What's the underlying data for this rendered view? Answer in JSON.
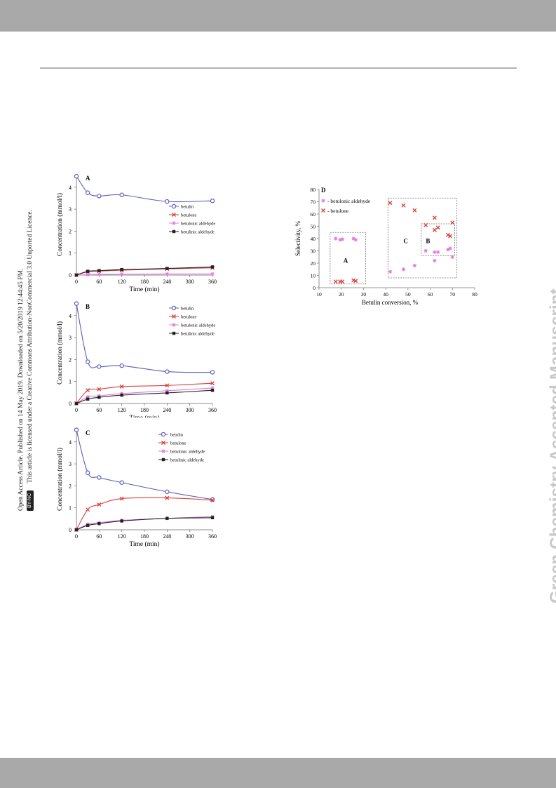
{
  "page": {
    "sidebar_line1": "Open Access Article. Published on 14 May 2019. Downloaded on 5/20/2019 12:44:45 PM.",
    "sidebar_badge": "BY-NC",
    "sidebar_line2": "This article is licensed under a Creative Commons Attribution-NonCommercial 3.0 Unported Licence.",
    "watermark": "Green Chemistry Accepted Manuscript"
  },
  "colors": {
    "betulin": "#5b5bbf",
    "betulone": "#d9423b",
    "betulonic_aldehyde": "#e07ae0",
    "betulinic_aldehyde": "#222222"
  },
  "chart_data": [
    {
      "type": "line",
      "panel_label": "A",
      "xlabel": "Time (min)",
      "ylabel": "Concentration (mmol/l)",
      "xticks": [
        0,
        60,
        120,
        180,
        240,
        300,
        360
      ],
      "yticks": [
        0,
        1,
        2,
        3,
        4
      ],
      "xlim": [
        0,
        360
      ],
      "ylim": [
        0,
        4.6
      ],
      "x": [
        0,
        30,
        60,
        120,
        240,
        360
      ],
      "series": [
        {
          "name": "betulin",
          "values": [
            4.5,
            3.75,
            3.6,
            3.65,
            3.35,
            3.38
          ]
        },
        {
          "name": "betulone",
          "values": [
            0,
            0.15,
            0.18,
            0.22,
            0.28,
            0.33
          ]
        },
        {
          "name": "betulonic aldehyde",
          "values": [
            0,
            0.02,
            0.03,
            0.04,
            0.05,
            0.05
          ]
        },
        {
          "name": "betulinic aldehyde",
          "values": [
            0,
            0.17,
            0.2,
            0.25,
            0.3,
            0.37
          ]
        }
      ],
      "legend_position": "right"
    },
    {
      "type": "line",
      "panel_label": "B",
      "xlabel": "Time (min)",
      "ylabel": "Concentration (mmol/l)",
      "xticks": [
        0,
        60,
        120,
        180,
        240,
        300,
        360
      ],
      "yticks": [
        0,
        1,
        2,
        3,
        4
      ],
      "xlim": [
        0,
        360
      ],
      "ylim": [
        0,
        4.6
      ],
      "x": [
        0,
        30,
        60,
        120,
        240,
        360
      ],
      "series": [
        {
          "name": "betulin",
          "values": [
            4.55,
            1.9,
            1.68,
            1.72,
            1.45,
            1.42
          ]
        },
        {
          "name": "betulone",
          "values": [
            0,
            0.6,
            0.65,
            0.77,
            0.82,
            0.92
          ]
        },
        {
          "name": "betulonic aldehyde",
          "values": [
            0,
            0.3,
            0.35,
            0.45,
            0.58,
            0.7
          ]
        },
        {
          "name": "betulinic aldehyde",
          "values": [
            0,
            0.2,
            0.28,
            0.38,
            0.48,
            0.6
          ]
        }
      ],
      "legend_position": "top-right"
    },
    {
      "type": "line",
      "panel_label": "C",
      "xlabel": "Time (min)",
      "ylabel": "Concentration (mmol/l)",
      "xticks": [
        0,
        60,
        120,
        180,
        240,
        300,
        360
      ],
      "yticks": [
        0,
        1,
        2,
        3,
        4
      ],
      "xlim": [
        0,
        360
      ],
      "ylim": [
        0,
        4.6
      ],
      "x": [
        0,
        30,
        60,
        120,
        240,
        360
      ],
      "series": [
        {
          "name": "betulin",
          "values": [
            4.55,
            2.6,
            2.38,
            2.15,
            1.73,
            1.38
          ]
        },
        {
          "name": "betulone",
          "values": [
            0,
            0.92,
            1.15,
            1.42,
            1.45,
            1.35
          ]
        },
        {
          "name": "betulonic aldehyde",
          "values": [
            0,
            0.25,
            0.32,
            0.43,
            0.52,
            0.6
          ]
        },
        {
          "name": "betulinic aldehyde",
          "values": [
            0,
            0.2,
            0.28,
            0.4,
            0.52,
            0.55
          ]
        }
      ],
      "legend_position": "top-right"
    },
    {
      "type": "scatter",
      "panel_label": "D",
      "xlabel": "Betulin conversion, %",
      "ylabel": "Selectivity, %",
      "xticks": [
        10,
        20,
        30,
        40,
        50,
        60,
        70,
        80
      ],
      "yticks": [
        0,
        10,
        20,
        30,
        40,
        50,
        60,
        70,
        80
      ],
      "xlim": [
        10,
        80
      ],
      "ylim": [
        0,
        80
      ],
      "series": [
        {
          "name": "- betulonic aldehyde",
          "points": [
            [
              17.5,
              40
            ],
            [
              19.5,
              39
            ],
            [
              20.5,
              39.5
            ],
            [
              25.5,
              40
            ],
            [
              26.5,
              39
            ],
            [
              42,
              13
            ],
            [
              48,
              15
            ],
            [
              53,
              18
            ],
            [
              58,
              30
            ],
            [
              62,
              22
            ],
            [
              62,
              29
            ],
            [
              63.5,
              29
            ],
            [
              68,
              31
            ],
            [
              69,
              32
            ],
            [
              70,
              25
            ]
          ]
        },
        {
          "name": "- betulone",
          "points": [
            [
              17.5,
              5
            ],
            [
              19.5,
              5
            ],
            [
              20.5,
              5
            ],
            [
              25.5,
              6
            ],
            [
              26.5,
              5.5
            ],
            [
              42,
              69
            ],
            [
              48,
              67
            ],
            [
              53,
              63
            ],
            [
              58,
              51
            ],
            [
              62,
              57
            ],
            [
              62,
              47
            ],
            [
              63.5,
              49
            ],
            [
              68,
              43
            ],
            [
              69,
              42
            ],
            [
              70,
              53
            ]
          ]
        }
      ],
      "regions": [
        {
          "label": "A",
          "x": [
            15,
            31
          ],
          "y": [
            3,
            45
          ]
        },
        {
          "label": "C",
          "x": [
            41,
            72
          ],
          "y": [
            8,
            73
          ]
        },
        {
          "label": "B",
          "x": [
            56,
            71
          ],
          "y": [
            26,
            52
          ]
        }
      ],
      "legend_position": "top-left"
    }
  ]
}
